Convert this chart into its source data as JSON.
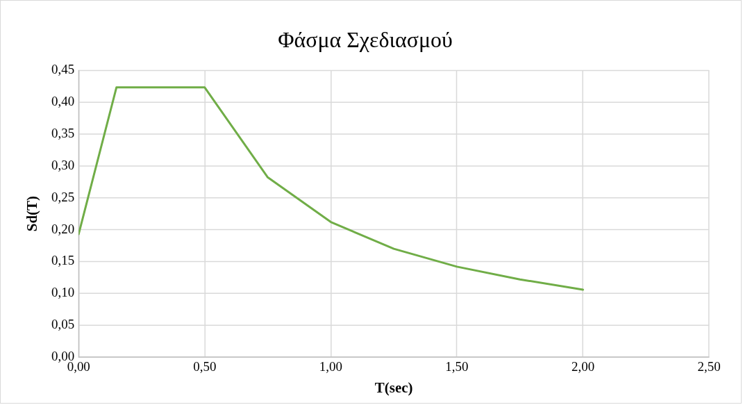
{
  "chart_data": {
    "type": "line",
    "title": "Φάσμα Σχεδιασμού",
    "xlabel": "T(sec)",
    "ylabel": "Sd(T)",
    "x": [
      0,
      0.15,
      0.5,
      0.75,
      1.0,
      1.25,
      1.5,
      1.75,
      2.0
    ],
    "series": [
      {
        "color": "#70ad47",
        "values": [
          0.193,
          0.423,
          0.423,
          0.282,
          0.212,
          0.17,
          0.142,
          0.122,
          0.106
        ]
      }
    ],
    "xlim": [
      0,
      2.5
    ],
    "xticks": [
      {
        "value": 0,
        "label": "0,00"
      },
      {
        "value": 0.5,
        "label": "0,50"
      },
      {
        "value": 1,
        "label": "1,00"
      },
      {
        "value": 1.5,
        "label": "1,50"
      },
      {
        "value": 2,
        "label": "2,00"
      },
      {
        "value": 2.5,
        "label": "2,50"
      }
    ],
    "ylim": [
      0,
      0.45
    ],
    "yticks": [
      {
        "value": 0,
        "label": "0,00"
      },
      {
        "value": 0.05,
        "label": "0,05"
      },
      {
        "value": 0.1,
        "label": "0,10"
      },
      {
        "value": 0.15,
        "label": "0,15"
      },
      {
        "value": 0.2,
        "label": "0,20"
      },
      {
        "value": 0.25,
        "label": "0,25"
      },
      {
        "value": 0.3,
        "label": "0,30"
      },
      {
        "value": 0.35,
        "label": "0,35"
      },
      {
        "value": 0.4,
        "label": "0,40"
      },
      {
        "value": 0.45,
        "label": "0,45"
      }
    ],
    "grid": true,
    "legend": false,
    "marker": "none",
    "line_style": "solid"
  }
}
